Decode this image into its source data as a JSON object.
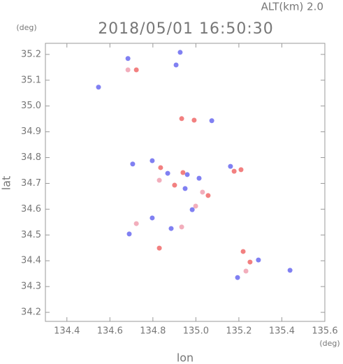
{
  "chart_data": {
    "type": "scatter",
    "title": "2018/05/01 16:50:30",
    "annotation": "ALT(km)  2.0",
    "y_unit": "(deg)",
    "x_unit": "(deg)",
    "xlabel": "lon",
    "ylabel": "lat",
    "xlim": [
      134.3,
      135.6
    ],
    "ylim": [
      34.165,
      35.243
    ],
    "xticks": [
      134.4,
      134.6,
      134.8,
      {
        "value": 135,
        "label": "135.0"
      },
      135.2,
      135.4,
      135.6
    ],
    "yticks": [
      34.2,
      34.3,
      34.4,
      34.5,
      34.6,
      34.7,
      34.8,
      34.9,
      {
        "value": 35,
        "label": "35.0"
      },
      35.1,
      35.2
    ],
    "x": [
      134.547,
      134.684,
      134.684,
      134.723,
      134.927,
      134.908,
      134.934,
      134.992,
      135.074,
      134.797,
      134.706,
      134.836,
      134.869,
      134.94,
      134.96,
      135.015,
      134.83,
      134.901,
      134.95,
      135.031,
      135.057,
      134.999,
      134.983,
      134.797,
      134.723,
      134.69,
      134.885,
      134.934,
      134.83,
      135.22,
      135.252,
      135.291,
      135.233,
      135.194,
      135.438,
      135.178,
      135.21,
      135.161
    ],
    "values": [
      35.073,
      35.184,
      35.14,
      35.14,
      35.208,
      35.159,
      34.951,
      34.945,
      34.943,
      34.788,
      34.775,
      34.761,
      34.739,
      34.742,
      34.734,
      34.72,
      34.712,
      34.693,
      34.68,
      34.666,
      34.653,
      34.612,
      34.598,
      34.566,
      34.544,
      34.504,
      34.525,
      34.531,
      34.449,
      34.436,
      34.395,
      34.403,
      34.36,
      34.335,
      34.363,
      34.747,
      34.753,
      34.766
    ],
    "colors": [
      "#6a6af0",
      "#6a6af0",
      "#f0a0b0",
      "#f06a6a",
      "#6a6af0",
      "#6a6af0",
      "#f06a6a",
      "#f06a6a",
      "#6a6af0",
      "#6a6af0",
      "#6a6af0",
      "#f06a6a",
      "#6a6af0",
      "#f06a6a",
      "#6a6af0",
      "#6a6af0",
      "#f0a0b0",
      "#f06a6a",
      "#6a6af0",
      "#f0a0b0",
      "#f06a6a",
      "#f0a0b0",
      "#6a6af0",
      "#6a6af0",
      "#f0a0b0",
      "#6a6af0",
      "#6a6af0",
      "#f0a0b0",
      "#f06a6a",
      "#f06a6a",
      "#f06a6a",
      "#6a6af0",
      "#f0a0b0",
      "#6a6af0",
      "#6a6af0",
      "#f06a6a",
      "#f06a6a",
      "#6a6af0"
    ]
  }
}
